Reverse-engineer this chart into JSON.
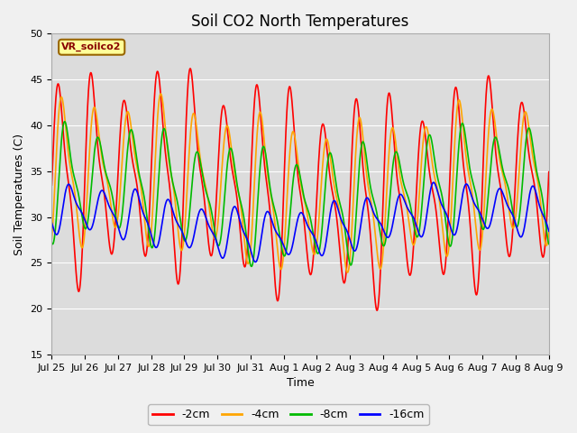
{
  "title": "Soil CO2 North Temperatures",
  "ylabel": "Soil Temperatures (C)",
  "xlabel": "Time",
  "ylim": [
    15,
    50
  ],
  "xlim": [
    0,
    360
  ],
  "tick_labels": [
    "Jul 25",
    "Jul 26",
    "Jul 27",
    "Jul 28",
    "Jul 29",
    "Jul 30",
    "Jul 31",
    "Aug 1",
    "Aug 2",
    "Aug 3",
    "Aug 4",
    "Aug 5",
    "Aug 6",
    "Aug 7",
    "Aug 8",
    "Aug 9"
  ],
  "tick_positions": [
    0,
    24,
    48,
    72,
    96,
    120,
    144,
    168,
    192,
    216,
    240,
    264,
    288,
    312,
    336,
    360
  ],
  "lines": [
    {
      "label": "-2cm",
      "color": "#ff0000",
      "amp": 11.5,
      "base": 33.5,
      "phase": 0.0,
      "period": 24,
      "amp_mod": 2.5,
      "amp_mod_period": 72
    },
    {
      "label": "-4cm",
      "color": "#ffa500",
      "amp": 8.5,
      "base": 33.5,
      "phase": 2.5,
      "period": 24,
      "amp_mod": 1.5,
      "amp_mod_period": 72
    },
    {
      "label": "-8cm",
      "color": "#00bb00",
      "amp": 6.5,
      "base": 32.5,
      "phase": 5.0,
      "period": 24,
      "amp_mod": 1.2,
      "amp_mod_period": 72
    },
    {
      "label": "-16cm",
      "color": "#0000ff",
      "amp": 3.0,
      "base": 29.5,
      "phase": 8.0,
      "period": 24,
      "amp_mod": 0.5,
      "amp_mod_period": 72
    }
  ],
  "legend_label": "VR_soilco2",
  "legend_color_bg": "#ffff99",
  "legend_color_border": "#996600",
  "plot_bg_color": "#dcdcdc",
  "fig_bg_color": "#f0f0f0",
  "title_fontsize": 12,
  "axis_fontsize": 9,
  "tick_fontsize": 8,
  "grid_color": "#ffffff",
  "peak_sharpness": 2.5
}
